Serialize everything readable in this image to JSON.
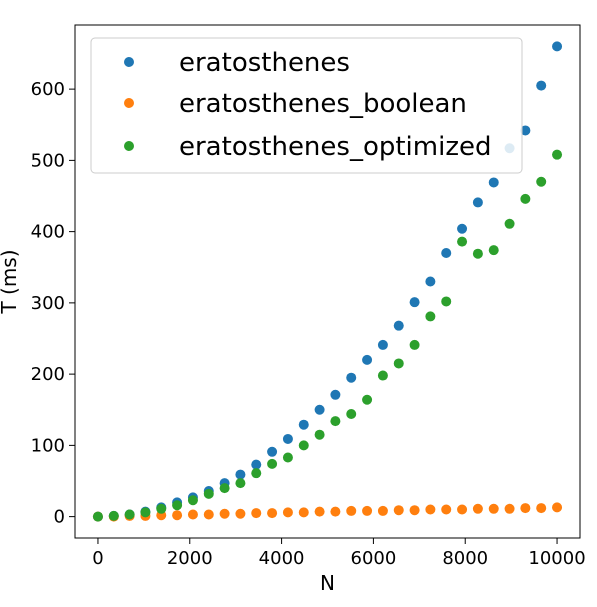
{
  "chart_data": {
    "type": "scatter",
    "xlabel": "N",
    "ylabel": "T (ms)",
    "xlim": [
      -500,
      10500
    ],
    "ylim": [
      -30,
      690
    ],
    "xticks": [
      0,
      2000,
      4000,
      6000,
      8000,
      10000
    ],
    "yticks": [
      0,
      100,
      200,
      300,
      400,
      500,
      600
    ],
    "legend_position": "top-left",
    "x": [
      0,
      345,
      690,
      1034,
      1379,
      1724,
      2069,
      2414,
      2759,
      3103,
      3448,
      3793,
      4138,
      4483,
      4828,
      5172,
      5517,
      5862,
      6207,
      6552,
      6897,
      7241,
      7586,
      7931,
      8276,
      8621,
      8966,
      9310,
      9655,
      10000
    ],
    "series": [
      {
        "name": "eratosthenes",
        "color": "#1f77b4",
        "values": [
          0,
          1,
          3,
          7,
          13,
          20,
          27,
          36,
          47,
          59,
          73,
          91,
          109,
          129,
          150,
          171,
          195,
          220,
          241,
          268,
          301,
          330,
          370,
          404,
          441,
          469,
          517,
          542,
          605,
          660
        ]
      },
      {
        "name": "eratosthenes_boolean",
        "color": "#ff7f0e",
        "values": [
          0,
          0,
          1,
          1,
          2,
          2,
          3,
          3,
          4,
          4,
          5,
          5,
          6,
          6,
          7,
          7,
          8,
          8,
          8,
          9,
          9,
          10,
          10,
          10,
          11,
          11,
          11,
          12,
          12,
          13
        ]
      },
      {
        "name": "eratosthenes_optimized",
        "color": "#2ca02c",
        "values": [
          0,
          1,
          3,
          6,
          11,
          16,
          23,
          32,
          40,
          47,
          61,
          74,
          83,
          100,
          115,
          134,
          144,
          164,
          198,
          215,
          241,
          281,
          302,
          386,
          369,
          374,
          411,
          446,
          470,
          508
        ]
      }
    ]
  }
}
